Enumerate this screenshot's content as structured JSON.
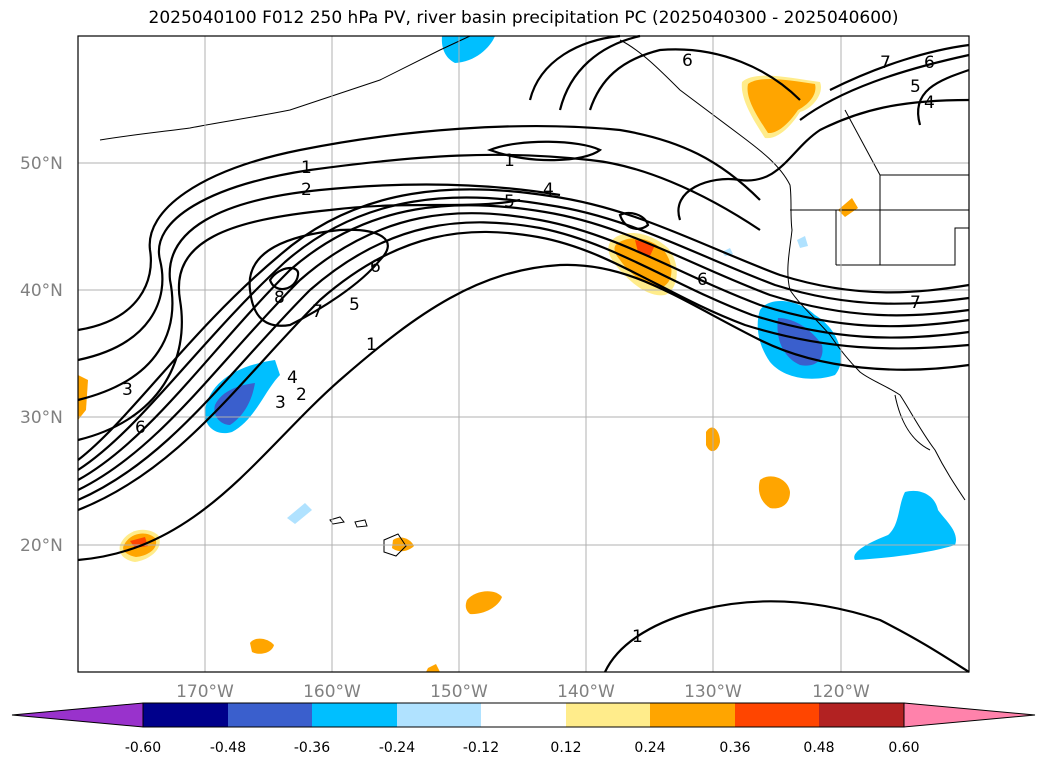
{
  "title": "2025040100 F012 250 hPa PV, river basin precipitation PC (2025040300 - 2025040600)",
  "map": {
    "lon_ticks": [
      "170°W",
      "160°W",
      "150°W",
      "140°W",
      "130°W",
      "120°W"
    ],
    "lat_ticks": [
      "50°N",
      "40°N",
      "30°N",
      "20°N"
    ],
    "extent": {
      "lon_min": -180,
      "lon_max": -110,
      "lat_min": 10,
      "lat_max": 60
    },
    "grid": true,
    "contour_labels": [
      "1",
      "2",
      "3",
      "4",
      "5",
      "6",
      "7",
      "8"
    ]
  },
  "colorbar": {
    "ticks": [
      "-0.60",
      "-0.48",
      "-0.36",
      "-0.24",
      "-0.12",
      "0.12",
      "0.24",
      "0.36",
      "0.48",
      "0.60"
    ],
    "colors": [
      "#9932cc",
      "#00008b",
      "#3a5fcd",
      "#00bfff",
      "#b0e2ff",
      "#ffffff",
      "#ffec8b",
      "#ffa500",
      "#ff4500",
      "#b22222",
      "#ff82ab"
    ],
    "extend": "both"
  }
}
